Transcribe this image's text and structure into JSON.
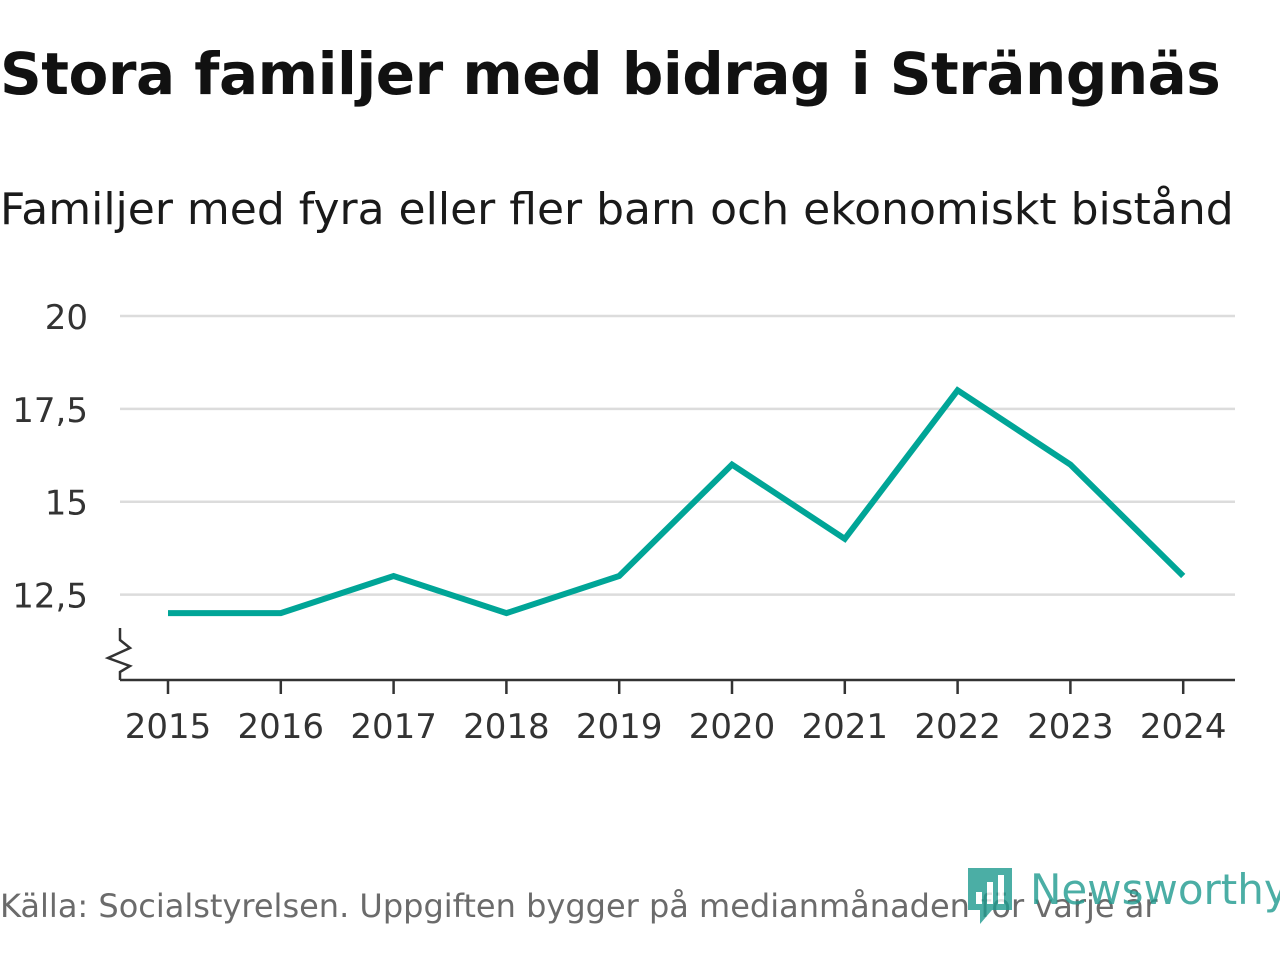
{
  "title": "Stora familjer med bidrag i Strängnäs",
  "subtitle": "Familjer med fyra eller fler barn och ekonomiskt bistånd",
  "source": "Källa: Socialstyrelsen. Uppgiften bygger på medianmånaden för varje år",
  "brand": "Newsworthy",
  "colors": {
    "line": "#00a597",
    "grid": "#dcdcdc",
    "axis": "#333333",
    "brand": "#1f9b8f"
  },
  "chart_data": {
    "type": "line",
    "title": "Stora familjer med bidrag i Strängnäs",
    "subtitle": "Familjer med fyra eller fler barn och ekonomiskt bistånd",
    "xlabel": "",
    "ylabel": "",
    "x": [
      "2015",
      "2016",
      "2017",
      "2018",
      "2019",
      "2020",
      "2021",
      "2022",
      "2023",
      "2024"
    ],
    "series": [
      {
        "name": "Familjer med fyra eller fler barn och ekonomiskt bistånd",
        "values": [
          12,
          12,
          13,
          12,
          13,
          16,
          14,
          18,
          16,
          13
        ]
      }
    ],
    "yticks": [
      12.5,
      15,
      17.5,
      20
    ],
    "ytick_labels": [
      "12,5",
      "15",
      "17,5",
      "20"
    ],
    "ylim": [
      10.2,
      20
    ],
    "axis_break": true,
    "grid": true
  }
}
